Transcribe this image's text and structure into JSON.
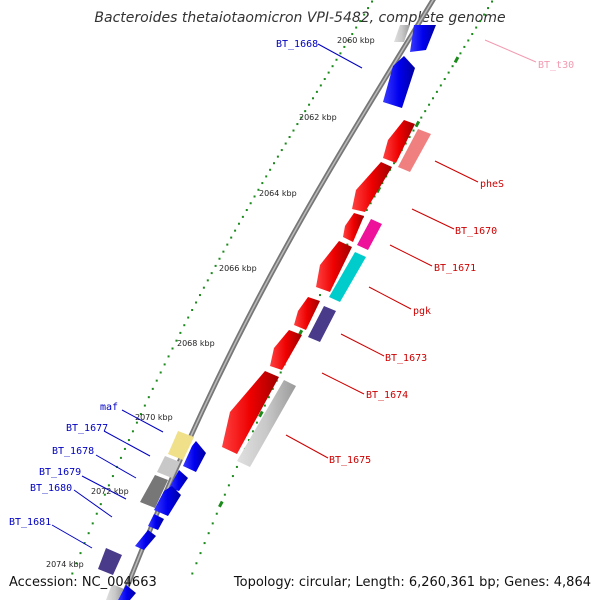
{
  "title": "Bacteroides thetaiotaomicron VPI-5482, complete genome",
  "footer": {
    "accession": "Accession: NC_004663",
    "summary": "Topology: circular; Length: 6,260,361 bp; Genes: 4,864"
  },
  "colors": {
    "backbone": "#808080",
    "tick": "#1a8a1a",
    "forward_label": "#0000c0",
    "reverse_label": "#cc0000",
    "trna_label": "#f29ab0"
  },
  "kbp_labels": [
    "2060 kbp",
    "2062 kbp",
    "2064 kbp",
    "2066 kbp",
    "2068 kbp",
    "2070 kbp",
    "2072 kbp",
    "2074 kbp"
  ],
  "genes": [
    {
      "label": "BT_1668",
      "strand": "forward",
      "color": "#0000ee"
    },
    {
      "label": "BT_t30",
      "strand": "reverse",
      "color": "#f29ab0"
    },
    {
      "label": "pheS",
      "strand": "reverse",
      "color": "#ee0000"
    },
    {
      "label": "BT_1670",
      "strand": "reverse",
      "color": "#ee0000"
    },
    {
      "label": "BT_1671",
      "strand": "reverse",
      "color": "#ee0000"
    },
    {
      "label": "pgk",
      "strand": "reverse",
      "color": "#ee0000"
    },
    {
      "label": "BT_1673",
      "strand": "reverse",
      "color": "#ee0000"
    },
    {
      "label": "BT_1674",
      "strand": "reverse",
      "color": "#ee0000"
    },
    {
      "label": "BT_1675",
      "strand": "reverse",
      "color": "#ee0000"
    },
    {
      "label": "maf",
      "strand": "forward",
      "color": "#0000ee"
    },
    {
      "label": "BT_1677",
      "strand": "forward",
      "color": "#0000ee"
    },
    {
      "label": "BT_1678",
      "strand": "forward",
      "color": "#0000ee"
    },
    {
      "label": "BT_1679",
      "strand": "forward",
      "color": "#0000ee"
    },
    {
      "label": "BT_1680",
      "strand": "forward",
      "color": "#0000ee"
    },
    {
      "label": "BT_1681",
      "strand": "forward",
      "color": "#0000ee"
    }
  ]
}
